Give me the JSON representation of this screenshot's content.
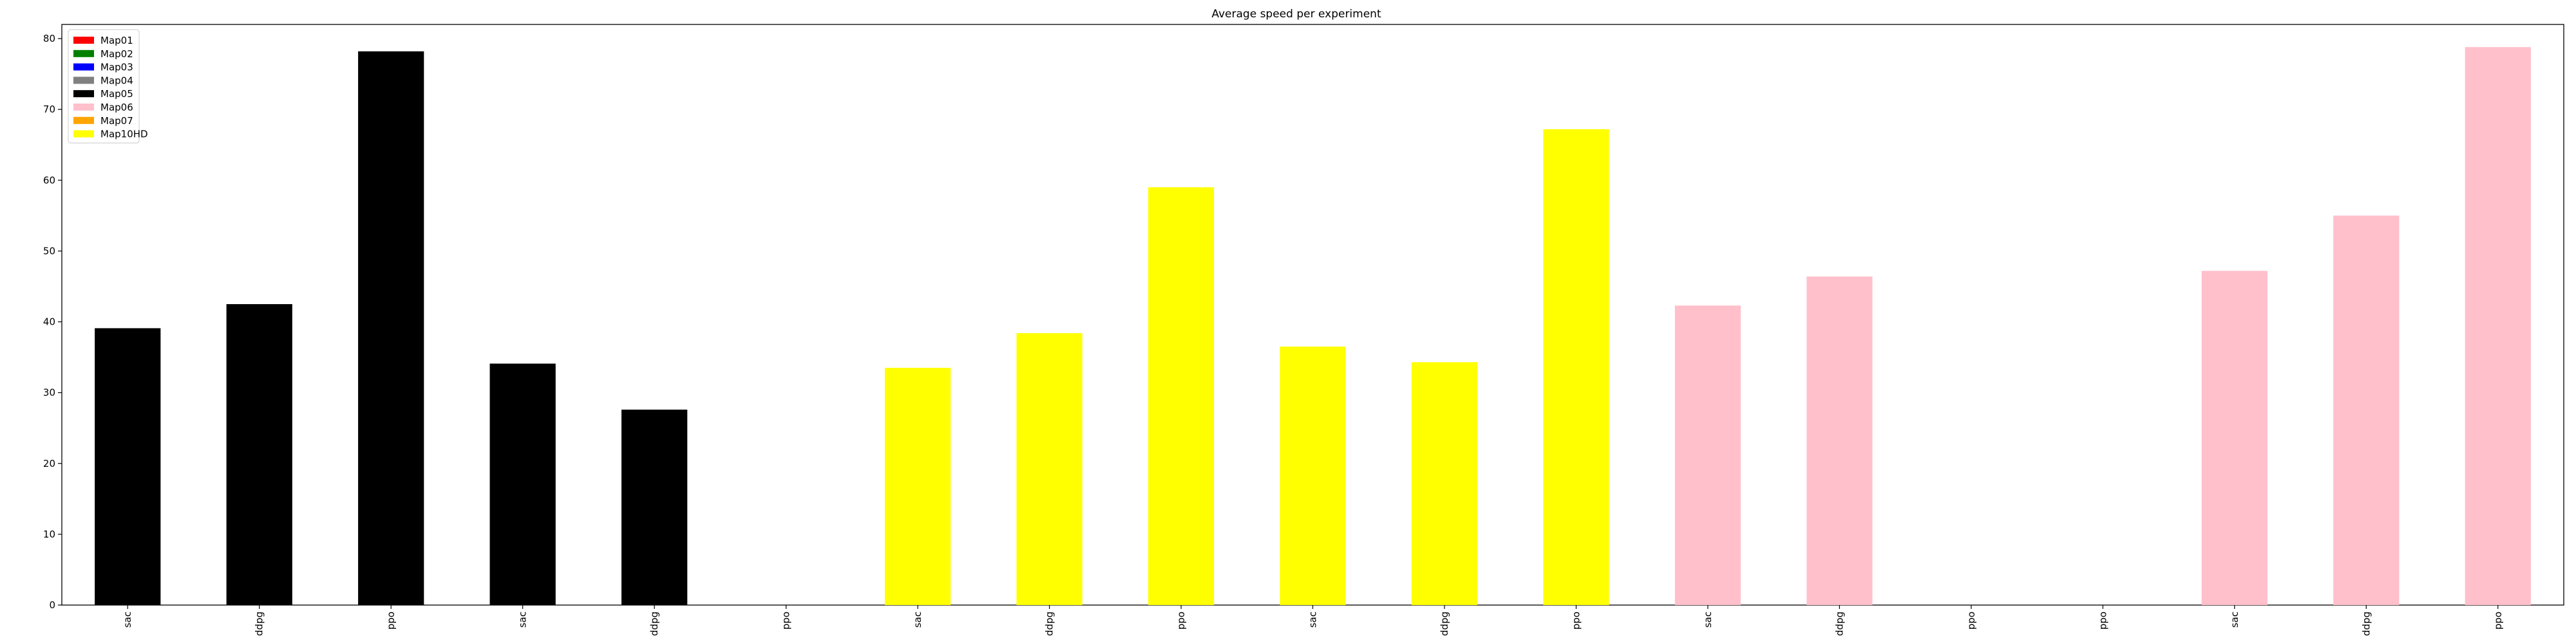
{
  "chart_data": {
    "type": "bar",
    "title": "Average speed per experiment",
    "xlabel": "",
    "ylabel": "",
    "ylim": [
      0,
      82
    ],
    "yticks": [
      0,
      10,
      20,
      30,
      40,
      50,
      60,
      70,
      80
    ],
    "grid": false,
    "legend_position": "top-left",
    "legend": [
      {
        "label": "Map01",
        "color": "#ff0000"
      },
      {
        "label": "Map02",
        "color": "#008000"
      },
      {
        "label": "Map03",
        "color": "#0000ff"
      },
      {
        "label": "Map04",
        "color": "#808080"
      },
      {
        "label": "Map05",
        "color": "#000000"
      },
      {
        "label": "Map06",
        "color": "#ffc0cb"
      },
      {
        "label": "Map07",
        "color": "#ffa500"
      },
      {
        "label": "Map10HD",
        "color": "#ffff00"
      }
    ],
    "categories": [
      "sac",
      "ddpg",
      "ppo",
      "sac",
      "ddpg",
      "ppo",
      "sac",
      "ddpg",
      "ppo",
      "sac",
      "ddpg",
      "ppo",
      "sac",
      "ddpg",
      "ppo",
      "ppo",
      "sac",
      "ddpg",
      "ppo"
    ],
    "values": [
      39.1,
      42.5,
      78.2,
      34.1,
      27.6,
      0,
      33.5,
      38.4,
      59.0,
      36.5,
      34.3,
      67.2,
      42.3,
      46.4,
      0,
      0,
      47.2,
      55.0,
      78.8
    ],
    "bar_colors": [
      "#000000",
      "#000000",
      "#000000",
      "#000000",
      "#000000",
      "#000000",
      "#ffff00",
      "#ffff00",
      "#ffff00",
      "#ffff00",
      "#ffff00",
      "#ffff00",
      "#ffc0cb",
      "#ffc0cb",
      "#ffc0cb",
      "#ffc0cb",
      "#ffc0cb",
      "#ffc0cb",
      "#ffc0cb"
    ]
  }
}
